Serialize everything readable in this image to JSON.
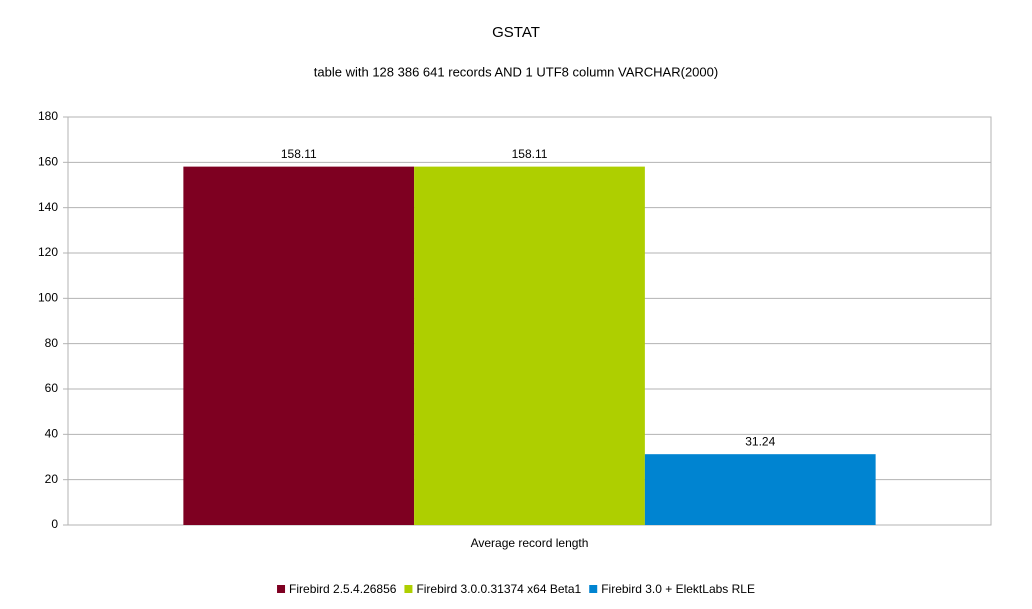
{
  "chart_data": {
    "type": "bar",
    "title": "GSTAT",
    "subtitle": "table with 128 386 641 records AND 1 UTF8 column VARCHAR(2000)",
    "categories": [
      "Average record length"
    ],
    "series": [
      {
        "name": "Firebird 2.5.4.26856",
        "color": "#7e0021",
        "values": [
          158.11
        ]
      },
      {
        "name": "Firebird 3.0.0.31374 x64 Beta1",
        "color": "#aecf00",
        "values": [
          158.11
        ]
      },
      {
        "name": "Firebird 3.0 + ElektLabs RLE",
        "color": "#0084d1",
        "values": [
          31.24
        ]
      }
    ],
    "ylim": [
      0,
      180
    ],
    "yticks": [
      0,
      20,
      40,
      60,
      80,
      100,
      120,
      140,
      160,
      180
    ],
    "grid": true,
    "legend": "bottom"
  }
}
